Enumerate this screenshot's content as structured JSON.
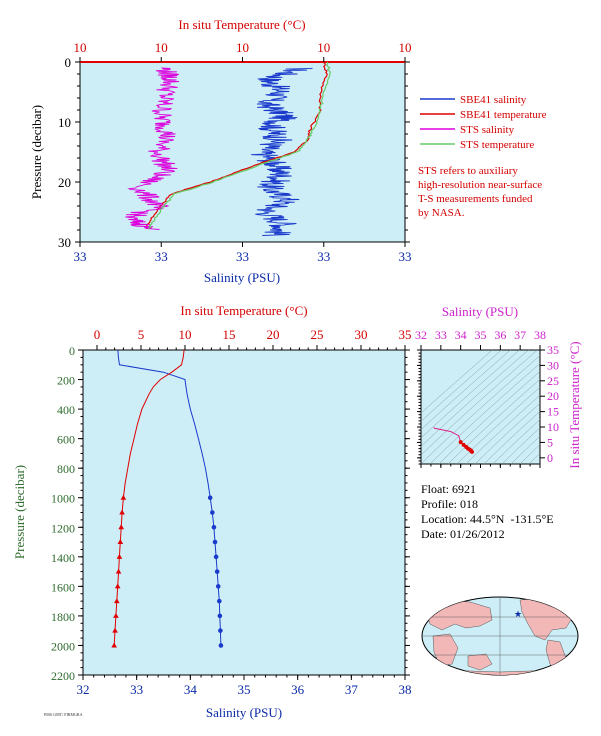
{
  "top_chart": {
    "xlabel_top": "In situ Temperature (°C)",
    "xlabel_bottom": "Salinity (PSU)",
    "ylabel": "Pressure (decibar)",
    "top_ticks": [
      "10",
      "10",
      "10",
      "10",
      "10"
    ],
    "bottom_ticks": [
      "33",
      "33",
      "33",
      "33",
      "33"
    ],
    "y_ticks": [
      "0",
      "10",
      "20",
      "30"
    ],
    "legend": [
      {
        "label": "SBE41 salinity",
        "color": "#1a3acc"
      },
      {
        "label": "SBE41 temperature",
        "color": "#e00000"
      },
      {
        "label": "STS salinity",
        "color": "#dd00dd"
      },
      {
        "label": "STS temperature",
        "color": "#66cc66"
      }
    ],
    "note": [
      "STS refers to auxiliary",
      "high-resolution near-surface",
      "T-S measurements funded",
      "by NASA."
    ]
  },
  "bottom_chart": {
    "xlabel_top": "In situ Temperature (°C)",
    "xlabel_bottom": "Salinity (PSU)",
    "ylabel": "Pressure (decibar)",
    "top_ticks": [
      "0",
      "5",
      "10",
      "15",
      "20",
      "25",
      "30",
      "35"
    ],
    "bottom_ticks": [
      "32",
      "33",
      "34",
      "35",
      "36",
      "37",
      "38"
    ],
    "y_ticks": [
      "0",
      "200",
      "400",
      "600",
      "800",
      "1000",
      "1200",
      "1400",
      "1600",
      "1800",
      "2000",
      "2200"
    ]
  },
  "ts_diagram": {
    "xlabel": "Salinity (PSU)",
    "ylabel": "In situ Temperature (°C)",
    "x_ticks": [
      "32",
      "33",
      "34",
      "35",
      "36",
      "37",
      "38"
    ],
    "y_ticks": [
      "0",
      "5",
      "10",
      "15",
      "20",
      "25",
      "30",
      "35"
    ]
  },
  "float_info": {
    "float_label": "Float:",
    "float_value": "6921",
    "profile_label": "Profile:",
    "profile_value": "018",
    "location_label": "Location:",
    "location_value": "44.5°N  -131.5°E",
    "date_label": "Date:",
    "date_value": "01/26/2012"
  },
  "footer_text": "P006 GMT/ FIRMGRA",
  "colors": {
    "panel_bg": "#cdeef7",
    "salinity": "#1a3acc",
    "temperature": "#e00000",
    "sts_salinity": "#dd00dd",
    "sts_temperature": "#66cc66"
  },
  "chart_data": [
    {
      "type": "line",
      "title": "",
      "xlabel": "Salinity (PSU)",
      "x2label": "In situ Temperature (°C)",
      "ylabel": "Pressure (decibar)",
      "ylim": [
        30,
        0
      ],
      "series": [
        {
          "name": "SBE41 salinity",
          "pressure": [
            1,
            3,
            5,
            7,
            9,
            11,
            13,
            15,
            17,
            19,
            21,
            23,
            25,
            27,
            29
          ],
          "position": [
            0.68,
            0.58,
            0.62,
            0.57,
            0.63,
            0.59,
            0.61,
            0.56,
            0.6,
            0.62,
            0.58,
            0.64,
            0.57,
            0.63,
            0.6
          ]
        },
        {
          "name": "SBE41 temperature",
          "pressure": [
            0,
            2,
            5,
            8,
            11,
            13,
            15,
            17,
            19,
            20,
            22,
            24,
            26,
            28
          ],
          "position": [
            0.75,
            0.76,
            0.74,
            0.74,
            0.71,
            0.7,
            0.66,
            0.55,
            0.45,
            0.4,
            0.28,
            0.25,
            0.22,
            0.2
          ]
        },
        {
          "name": "STS salinity",
          "pressure": [
            1,
            3,
            6,
            9,
            12,
            15,
            18,
            21,
            24,
            26,
            28
          ],
          "position": [
            0.26,
            0.28,
            0.26,
            0.25,
            0.27,
            0.24,
            0.27,
            0.18,
            0.24,
            0.15,
            0.22
          ]
        },
        {
          "name": "STS temperature",
          "pressure": [
            0,
            2,
            5,
            8,
            11,
            13,
            15,
            17,
            19,
            20,
            22,
            24,
            26,
            28
          ],
          "position": [
            0.76,
            0.77,
            0.75,
            0.74,
            0.72,
            0.7,
            0.67,
            0.56,
            0.46,
            0.41,
            0.29,
            0.26,
            0.23,
            0.21
          ]
        }
      ]
    },
    {
      "type": "line",
      "title": "",
      "xlabel": "Salinity (PSU)",
      "x2label": "In situ Temperature (°C)",
      "ylabel": "Pressure (decibar)",
      "xlim": [
        32,
        38
      ],
      "x2lim": [
        -2,
        35
      ],
      "ylim": [
        2200,
        0
      ],
      "series": [
        {
          "name": "Salinity",
          "pressure": [
            0,
            50,
            100,
            150,
            200,
            250,
            300,
            400,
            500,
            600,
            700,
            800,
            900,
            1000,
            1100,
            1200,
            1300,
            1400,
            1500,
            1600,
            1700,
            1800,
            1900,
            2000
          ],
          "values": [
            32.65,
            32.66,
            32.68,
            33.5,
            33.9,
            33.92,
            33.94,
            34.0,
            34.08,
            34.15,
            34.22,
            34.28,
            34.33,
            34.37,
            34.41,
            34.44,
            34.46,
            34.48,
            34.5,
            34.52,
            34.54,
            34.55,
            34.56,
            34.57
          ]
        },
        {
          "name": "Temperature",
          "pressure": [
            0,
            50,
            100,
            150,
            200,
            250,
            300,
            400,
            500,
            600,
            700,
            800,
            900,
            1000,
            1100,
            1200,
            1300,
            1400,
            1500,
            1600,
            1700,
            1800,
            1900,
            2000
          ],
          "values": [
            9.9,
            9.8,
            9.6,
            8.5,
            7.2,
            6.4,
            5.9,
            5.1,
            4.6,
            4.2,
            3.8,
            3.5,
            3.2,
            3.0,
            2.85,
            2.75,
            2.65,
            2.55,
            2.45,
            2.35,
            2.25,
            2.15,
            2.05,
            1.95
          ]
        }
      ]
    },
    {
      "type": "line",
      "title": "",
      "xlabel": "Salinity (PSU)",
      "ylabel": "In situ Temperature (°C)",
      "xlim": [
        32,
        38
      ],
      "ylim": [
        -2,
        35
      ],
      "series": [
        {
          "name": "T-S",
          "x": [
            32.65,
            32.68,
            33.5,
            33.9,
            34.0,
            34.15,
            34.28,
            34.37,
            34.46,
            34.52,
            34.57
          ],
          "y": [
            9.9,
            9.6,
            8.5,
            7.2,
            5.1,
            4.2,
            3.5,
            3.0,
            2.65,
            2.35,
            1.95
          ]
        }
      ]
    }
  ]
}
